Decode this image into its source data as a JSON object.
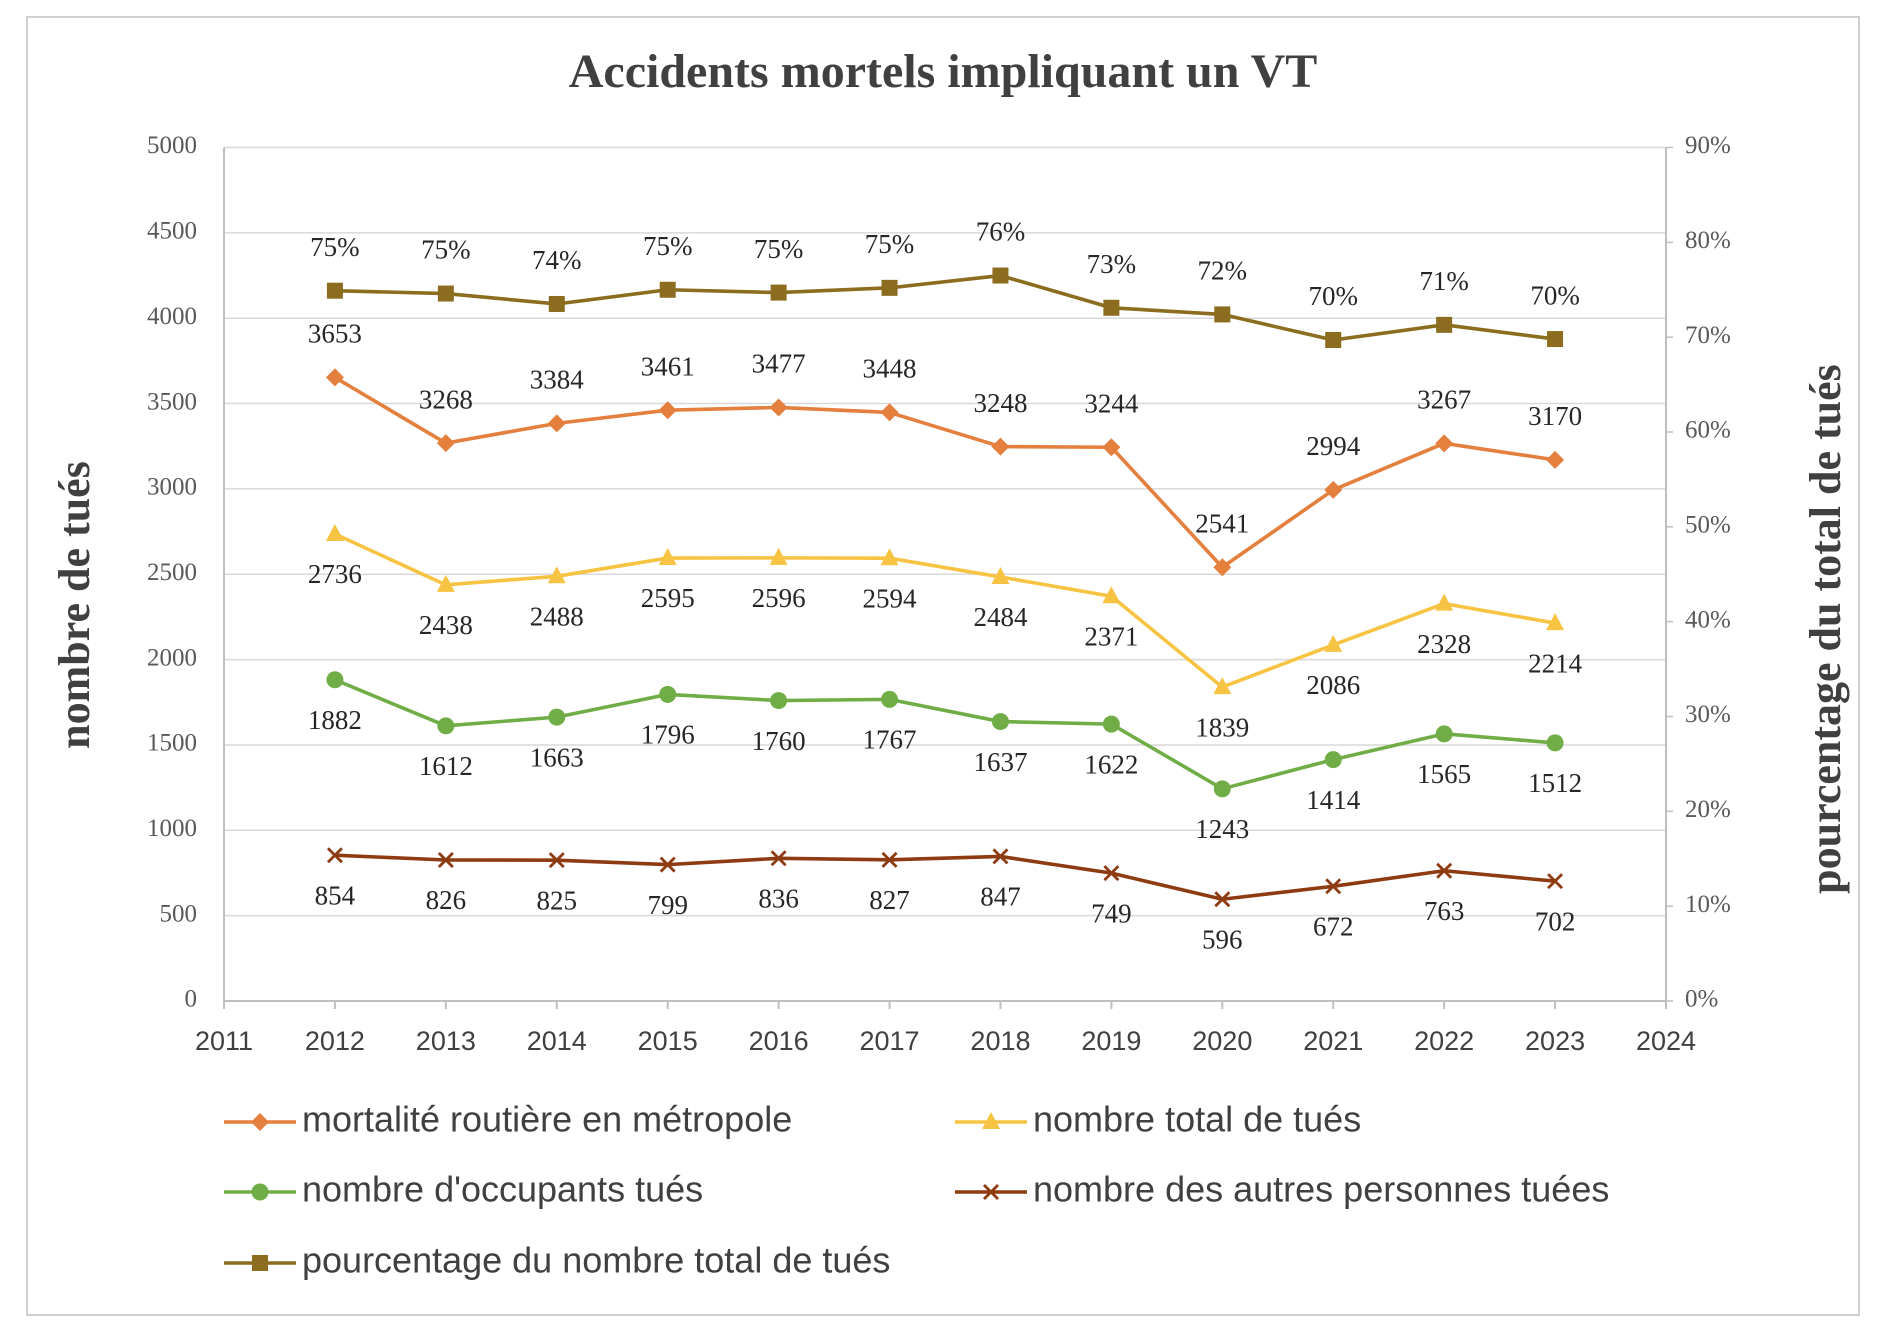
{
  "chart_data": {
    "type": "line",
    "title": "Accidents mortels impliquant un VT",
    "ylabel": "nombre de tués",
    "y2label": "pourcentage du total de tués",
    "x": [
      2012,
      2013,
      2014,
      2015,
      2016,
      2017,
      2018,
      2019,
      2020,
      2021,
      2022,
      2023
    ],
    "xlim": [
      2011,
      2024
    ],
    "xticks": [
      "2011",
      "2012",
      "2013",
      "2014",
      "2015",
      "2016",
      "2017",
      "2018",
      "2019",
      "2020",
      "2021",
      "2022",
      "2023",
      "2024"
    ],
    "ylim": [
      0,
      5000
    ],
    "yticks": [
      "0",
      "500",
      "1000",
      "1500",
      "2000",
      "2500",
      "3000",
      "3500",
      "4000",
      "4500",
      "5000"
    ],
    "y2lim": [
      0,
      90
    ],
    "y2ticks": [
      "0%",
      "10%",
      "20%",
      "30%",
      "40%",
      "50%",
      "60%",
      "70%",
      "80%",
      "90%"
    ],
    "grid": true,
    "legend_position": "bottom",
    "series": [
      {
        "name": "mortalité routière en métropole",
        "axis": "left",
        "color": "#E47F3E",
        "marker": "diamond",
        "label_position": "above",
        "values": [
          3653,
          3268,
          3384,
          3461,
          3477,
          3448,
          3248,
          3244,
          2541,
          2994,
          3267,
          3170
        ]
      },
      {
        "name": "nombre total de tués",
        "axis": "left",
        "color": "#F7C342",
        "marker": "triangle",
        "label_position": "below",
        "values": [
          2736,
          2438,
          2488,
          2595,
          2596,
          2594,
          2484,
          2371,
          1839,
          2086,
          2328,
          2214
        ]
      },
      {
        "name": "nombre d'occupants tués",
        "axis": "left",
        "color": "#70AD47",
        "marker": "circle",
        "label_position": "below",
        "values": [
          1882,
          1612,
          1663,
          1796,
          1760,
          1767,
          1637,
          1622,
          1243,
          1414,
          1565,
          1512
        ]
      },
      {
        "name": "nombre des autres personnes tuées",
        "axis": "left",
        "color": "#8E3B12",
        "marker": "x",
        "label_position": "below",
        "values": [
          854,
          826,
          825,
          799,
          836,
          827,
          847,
          749,
          596,
          672,
          763,
          702
        ]
      },
      {
        "name": "pourcentage du nombre total de tués",
        "axis": "right",
        "color": "#8C6D1F",
        "marker": "square",
        "label_position": "above",
        "values": [
          74.9,
          74.6,
          73.5,
          75.0,
          74.7,
          75.2,
          76.5,
          73.1,
          72.4,
          69.7,
          71.3,
          69.8
        ],
        "labels": [
          "75%",
          "75%",
          "74%",
          "75%",
          "75%",
          "75%",
          "76%",
          "73%",
          "72%",
          "70%",
          "71%",
          "70%"
        ]
      }
    ]
  }
}
